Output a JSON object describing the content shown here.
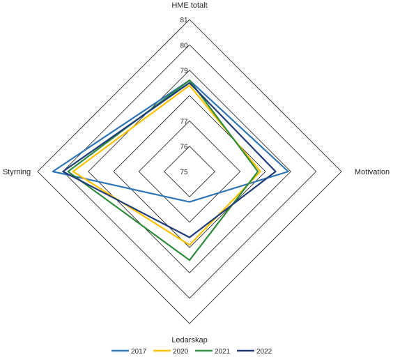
{
  "chart_data": {
    "type": "radar",
    "axes": [
      "HME totalt",
      "Motivation",
      "Ledarskap",
      "Styrning"
    ],
    "range": [
      75,
      81
    ],
    "ticks": [
      75,
      76,
      77,
      79,
      80,
      81
    ],
    "grid": true,
    "legend_position": "bottom",
    "series": [
      {
        "name": "2017",
        "color": "#2E75B6",
        "values": [
          78.6,
          78.9,
          76.2,
          80.4
        ]
      },
      {
        "name": "2020",
        "color": "#FFC000",
        "values": [
          78.4,
          77.8,
          77.9,
          79.6
        ]
      },
      {
        "name": "2021",
        "color": "#2E8B3A",
        "values": [
          78.6,
          77.7,
          78.5,
          79.8
        ]
      },
      {
        "name": "2022",
        "color": "#1F3B7A",
        "values": [
          78.5,
          78.4,
          77.6,
          80.0
        ]
      }
    ]
  }
}
